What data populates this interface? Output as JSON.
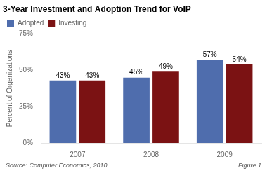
{
  "chart_data": {
    "type": "bar",
    "title": "3-Year Investment and Adoption Trend for VoIP",
    "y_label": "Percent of Organizations",
    "categories": [
      "2007",
      "2008",
      "2009"
    ],
    "series": [
      {
        "name": "Adopted",
        "color": "#4F6DAD",
        "values": [
          43,
          45,
          57
        ],
        "value_labels": [
          "43%",
          "45%",
          "57%"
        ]
      },
      {
        "name": "Investing",
        "color": "#7B1213",
        "values": [
          43,
          49,
          54
        ],
        "value_labels": [
          "43%",
          "49%",
          "54%"
        ]
      }
    ],
    "ylim": [
      0,
      75
    ],
    "yticks": [
      {
        "value": 0,
        "label": "0%"
      },
      {
        "value": 25,
        "label": "25%"
      },
      {
        "value": 50,
        "label": "50%"
      },
      {
        "value": 75,
        "label": "75%"
      }
    ],
    "grid": false,
    "legend": "upper left",
    "data_labels": true,
    "annotations": [
      "Source: Computer Economics, 2010",
      "Figure 1"
    ]
  }
}
